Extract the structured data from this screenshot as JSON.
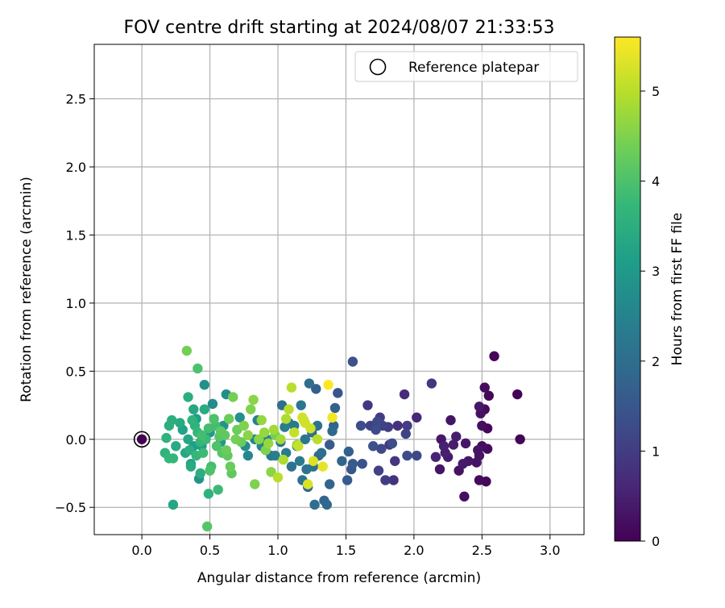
{
  "chart_data": {
    "type": "scatter",
    "title": "FOV centre drift starting at 2024/08/07 21:33:53",
    "xlabel": "Angular distance from reference (arcmin)",
    "ylabel": "Rotation from reference (arcmin)",
    "xlim": [
      -0.35,
      3.25
    ],
    "ylim": [
      -0.7,
      2.9
    ],
    "xticks": [
      0.0,
      0.5,
      1.0,
      1.5,
      2.0,
      2.5,
      3.0
    ],
    "xtick_labels": [
      "0.0",
      "0.5",
      "1.0",
      "1.5",
      "2.0",
      "2.5",
      "3.0"
    ],
    "yticks": [
      -0.5,
      0.0,
      0.5,
      1.0,
      1.5,
      2.0,
      2.5
    ],
    "ytick_labels": [
      "−0.5",
      "0.0",
      "0.5",
      "1.0",
      "1.5",
      "2.0",
      "2.5"
    ],
    "grid": true,
    "legend": {
      "placement": "top-right",
      "label": "Reference platepar",
      "marker": "open-circle"
    },
    "reference_point": {
      "x": 0.0,
      "y": 0.0
    },
    "colorbar": {
      "label": "Hours from first FF file",
      "colormap": "viridis",
      "range": [
        0,
        5.6
      ],
      "ticks": [
        0,
        1,
        2,
        3,
        4,
        5
      ],
      "tick_labels": [
        "0",
        "1",
        "2",
        "3",
        "4",
        "5"
      ]
    },
    "points": [
      {
        "x": 2.78,
        "y": 0.0,
        "h": 0.05
      },
      {
        "x": 2.76,
        "y": 0.33,
        "h": 0.05
      },
      {
        "x": 2.59,
        "y": 0.61,
        "h": 0.1
      },
      {
        "x": 2.55,
        "y": 0.32,
        "h": 0.1
      },
      {
        "x": 2.54,
        "y": 0.08,
        "h": 0.1
      },
      {
        "x": 2.54,
        "y": -0.07,
        "h": 0.15
      },
      {
        "x": 2.53,
        "y": -0.31,
        "h": 0.1
      },
      {
        "x": 2.52,
        "y": 0.38,
        "h": 0.15
      },
      {
        "x": 2.52,
        "y": 0.22,
        "h": 0.15
      },
      {
        "x": 2.5,
        "y": 0.1,
        "h": 0.2
      },
      {
        "x": 2.5,
        "y": -0.05,
        "h": 0.2
      },
      {
        "x": 2.49,
        "y": 0.19,
        "h": 0.25
      },
      {
        "x": 2.48,
        "y": -0.3,
        "h": 0.15
      },
      {
        "x": 2.48,
        "y": -0.12,
        "h": 0.3
      },
      {
        "x": 2.47,
        "y": -0.08,
        "h": 0.3
      },
      {
        "x": 2.46,
        "y": -0.17,
        "h": 0.3
      },
      {
        "x": 2.48,
        "y": 0.24,
        "h": 0.35
      },
      {
        "x": 2.4,
        "y": -0.16,
        "h": 0.35
      },
      {
        "x": 2.37,
        "y": -0.42,
        "h": 0.2
      },
      {
        "x": 2.38,
        "y": -0.03,
        "h": 0.35
      },
      {
        "x": 2.36,
        "y": -0.18,
        "h": 0.4
      },
      {
        "x": 2.33,
        "y": -0.23,
        "h": 0.25
      },
      {
        "x": 2.31,
        "y": 0.02,
        "h": 0.45
      },
      {
        "x": 2.29,
        "y": -0.04,
        "h": 0.45
      },
      {
        "x": 2.27,
        "y": 0.14,
        "h": 0.3
      },
      {
        "x": 2.25,
        "y": -0.13,
        "h": 0.4
      },
      {
        "x": 2.23,
        "y": -0.1,
        "h": 0.5
      },
      {
        "x": 2.22,
        "y": -0.05,
        "h": 0.5
      },
      {
        "x": 2.2,
        "y": 0.0,
        "h": 0.35
      },
      {
        "x": 2.19,
        "y": -0.22,
        "h": 0.3
      },
      {
        "x": 2.16,
        "y": -0.13,
        "h": 0.55
      },
      {
        "x": 2.13,
        "y": 0.41,
        "h": 0.9
      },
      {
        "x": 2.02,
        "y": 0.16,
        "h": 0.6
      },
      {
        "x": 2.02,
        "y": -0.12,
        "h": 1.2
      },
      {
        "x": 1.95,
        "y": 0.1,
        "h": 1.0
      },
      {
        "x": 1.95,
        "y": -0.12,
        "h": 1.3
      },
      {
        "x": 1.94,
        "y": 0.04,
        "h": 1.1
      },
      {
        "x": 1.93,
        "y": 0.33,
        "h": 0.7
      },
      {
        "x": 1.88,
        "y": 0.1,
        "h": 0.8
      },
      {
        "x": 1.86,
        "y": -0.16,
        "h": 0.9
      },
      {
        "x": 1.85,
        "y": -0.3,
        "h": 0.8
      },
      {
        "x": 1.84,
        "y": -0.03,
        "h": 1.3
      },
      {
        "x": 1.82,
        "y": -0.04,
        "h": 0.9
      },
      {
        "x": 1.81,
        "y": 0.09,
        "h": 1.0
      },
      {
        "x": 1.79,
        "y": -0.3,
        "h": 1.0
      },
      {
        "x": 1.77,
        "y": 0.1,
        "h": 1.1
      },
      {
        "x": 1.76,
        "y": -0.07,
        "h": 1.2
      },
      {
        "x": 1.75,
        "y": 0.16,
        "h": 1.0
      },
      {
        "x": 1.74,
        "y": -0.23,
        "h": 1.1
      },
      {
        "x": 1.73,
        "y": 0.13,
        "h": 1.2
      },
      {
        "x": 1.72,
        "y": 0.07,
        "h": 1.3
      },
      {
        "x": 1.7,
        "y": -0.05,
        "h": 1.4
      },
      {
        "x": 1.68,
        "y": 0.1,
        "h": 1.1
      },
      {
        "x": 1.66,
        "y": 0.25,
        "h": 0.9
      },
      {
        "x": 1.62,
        "y": -0.18,
        "h": 1.4
      },
      {
        "x": 1.61,
        "y": 0.1,
        "h": 1.3
      },
      {
        "x": 1.55,
        "y": 0.57,
        "h": 1.4
      },
      {
        "x": 1.55,
        "y": -0.18,
        "h": 1.6
      },
      {
        "x": 1.54,
        "y": -0.22,
        "h": 1.5
      },
      {
        "x": 1.52,
        "y": -0.09,
        "h": 1.7
      },
      {
        "x": 1.51,
        "y": -0.3,
        "h": 1.6
      },
      {
        "x": 1.47,
        "y": -0.16,
        "h": 1.8
      },
      {
        "x": 1.44,
        "y": 0.34,
        "h": 1.5
      },
      {
        "x": 1.42,
        "y": 0.23,
        "h": 1.7
      },
      {
        "x": 1.41,
        "y": 0.1,
        "h": 1.8
      },
      {
        "x": 1.4,
        "y": 0.06,
        "h": 1.9
      },
      {
        "x": 1.38,
        "y": -0.04,
        "h": 1.6
      },
      {
        "x": 1.38,
        "y": -0.33,
        "h": 1.8
      },
      {
        "x": 1.36,
        "y": -0.48,
        "h": 1.9
      },
      {
        "x": 1.34,
        "y": -0.45,
        "h": 1.8
      },
      {
        "x": 1.32,
        "y": -0.1,
        "h": 2.0
      },
      {
        "x": 1.3,
        "y": -0.12,
        "h": 1.9
      },
      {
        "x": 1.29,
        "y": 0.1,
        "h": 2.1
      },
      {
        "x": 1.28,
        "y": 0.37,
        "h": 1.7
      },
      {
        "x": 1.27,
        "y": -0.48,
        "h": 2.0
      },
      {
        "x": 1.26,
        "y": -0.2,
        "h": 2.0
      },
      {
        "x": 1.25,
        "y": 0.05,
        "h": 2.0
      },
      {
        "x": 1.23,
        "y": 0.41,
        "h": 2.0
      },
      {
        "x": 1.22,
        "y": -0.35,
        "h": 1.8
      },
      {
        "x": 1.21,
        "y": -0.22,
        "h": 2.1
      },
      {
        "x": 1.2,
        "y": 0.0,
        "h": 2.2
      },
      {
        "x": 1.18,
        "y": -0.3,
        "h": 2.1
      },
      {
        "x": 1.17,
        "y": 0.25,
        "h": 2.2
      },
      {
        "x": 1.16,
        "y": -0.16,
        "h": 2.3
      },
      {
        "x": 1.14,
        "y": -0.05,
        "h": 2.2
      },
      {
        "x": 1.12,
        "y": 0.1,
        "h": 2.3
      },
      {
        "x": 1.1,
        "y": -0.2,
        "h": 2.1
      },
      {
        "x": 1.08,
        "y": 0.12,
        "h": 2.0
      },
      {
        "x": 1.06,
        "y": -0.1,
        "h": 2.3
      },
      {
        "x": 1.05,
        "y": 0.09,
        "h": 2.4
      },
      {
        "x": 1.03,
        "y": 0.25,
        "h": 2.0
      },
      {
        "x": 1.02,
        "y": -0.02,
        "h": 2.2
      },
      {
        "x": 0.98,
        "y": -0.12,
        "h": 2.4
      },
      {
        "x": 0.95,
        "y": -0.12,
        "h": 2.2
      },
      {
        "x": 0.92,
        "y": 0.0,
        "h": 2.5
      },
      {
        "x": 0.88,
        "y": -0.05,
        "h": 2.6
      },
      {
        "x": 0.85,
        "y": 0.14,
        "h": 2.5
      },
      {
        "x": 0.83,
        "y": 0.0,
        "h": 2.6
      },
      {
        "x": 0.78,
        "y": -0.12,
        "h": 2.6
      },
      {
        "x": 0.76,
        "y": -0.05,
        "h": 2.7
      },
      {
        "x": 0.72,
        "y": 0.16,
        "h": 2.8
      },
      {
        "x": 0.62,
        "y": 0.33,
        "h": 2.7
      },
      {
        "x": 0.6,
        "y": 0.1,
        "h": 2.9
      },
      {
        "x": 0.58,
        "y": -0.02,
        "h": 3.0
      },
      {
        "x": 0.52,
        "y": 0.26,
        "h": 2.7
      },
      {
        "x": 0.5,
        "y": 0.05,
        "h": 3.0
      },
      {
        "x": 0.46,
        "y": 0.4,
        "h": 2.8
      },
      {
        "x": 0.44,
        "y": -0.05,
        "h": 3.1
      },
      {
        "x": 0.42,
        "y": -0.29,
        "h": 2.9
      },
      {
        "x": 0.4,
        "y": 0.15,
        "h": 3.1
      },
      {
        "x": 0.38,
        "y": -0.05,
        "h": 3.1
      },
      {
        "x": 0.36,
        "y": -0.18,
        "h": 3.2
      },
      {
        "x": 0.34,
        "y": 0.0,
        "h": 3.3
      },
      {
        "x": 0.32,
        "y": -0.1,
        "h": 3.3
      },
      {
        "x": 0.3,
        "y": 0.07,
        "h": 3.2
      },
      {
        "x": 0.28,
        "y": 0.12,
        "h": 3.4
      },
      {
        "x": 0.25,
        "y": -0.05,
        "h": 3.4
      },
      {
        "x": 0.23,
        "y": -0.48,
        "h": 3.3
      },
      {
        "x": 0.22,
        "y": 0.14,
        "h": 3.5
      },
      {
        "x": 0.2,
        "y": 0.1,
        "h": 3.5
      },
      {
        "x": 0.18,
        "y": 0.01,
        "h": 3.6
      },
      {
        "x": 0.17,
        "y": -0.1,
        "h": 3.6
      },
      {
        "x": 0.2,
        "y": -0.14,
        "h": 3.7
      },
      {
        "x": 0.23,
        "y": -0.14,
        "h": 3.7
      },
      {
        "x": 0.34,
        "y": 0.31,
        "h": 3.5
      },
      {
        "x": 0.37,
        "y": 0.14,
        "h": 3.6
      },
      {
        "x": 0.39,
        "y": 0.1,
        "h": 3.6
      },
      {
        "x": 0.41,
        "y": 0.05,
        "h": 3.7
      },
      {
        "x": 0.43,
        "y": -0.02,
        "h": 3.7
      },
      {
        "x": 0.45,
        "y": -0.1,
        "h": 3.8
      },
      {
        "x": 0.47,
        "y": 0.0,
        "h": 3.8
      },
      {
        "x": 0.49,
        "y": 0.08,
        "h": 3.9
      },
      {
        "x": 0.51,
        "y": -0.2,
        "h": 3.9
      },
      {
        "x": 0.53,
        "y": 0.15,
        "h": 4.0
      },
      {
        "x": 0.55,
        "y": -0.05,
        "h": 4.0
      },
      {
        "x": 0.57,
        "y": 0.02,
        "h": 4.1
      },
      {
        "x": 0.59,
        "y": -0.1,
        "h": 4.1
      },
      {
        "x": 0.61,
        "y": 0.03,
        "h": 4.2
      },
      {
        "x": 0.63,
        "y": -0.12,
        "h": 4.2
      },
      {
        "x": 0.65,
        "y": -0.2,
        "h": 4.3
      },
      {
        "x": 0.66,
        "y": -0.25,
        "h": 4.2
      },
      {
        "x": 0.64,
        "y": 0.15,
        "h": 4.3
      },
      {
        "x": 0.56,
        "y": -0.37,
        "h": 3.8
      },
      {
        "x": 0.49,
        "y": -0.4,
        "h": 3.6
      },
      {
        "x": 0.48,
        "y": -0.64,
        "h": 4.1
      },
      {
        "x": 0.43,
        "y": -0.25,
        "h": 3.5
      },
      {
        "x": 0.41,
        "y": 0.52,
        "h": 4.0
      },
      {
        "x": 0.33,
        "y": 0.65,
        "h": 4.4
      },
      {
        "x": 0.36,
        "y": -0.2,
        "h": 3.4
      },
      {
        "x": 0.4,
        "y": -0.12,
        "h": 3.7
      },
      {
        "x": 0.46,
        "y": 0.22,
        "h": 3.4
      },
      {
        "x": 0.5,
        "y": -0.23,
        "h": 4.0
      },
      {
        "x": 0.54,
        "y": 0.1,
        "h": 3.9
      },
      {
        "x": 0.58,
        "y": 0.06,
        "h": 4.2
      },
      {
        "x": 0.67,
        "y": 0.31,
        "h": 4.4
      },
      {
        "x": 0.69,
        "y": 0.0,
        "h": 4.4
      },
      {
        "x": 0.75,
        "y": 0.1,
        "h": 4.5
      },
      {
        "x": 0.78,
        "y": 0.03,
        "h": 4.6
      },
      {
        "x": 0.8,
        "y": 0.22,
        "h": 4.5
      },
      {
        "x": 0.82,
        "y": 0.29,
        "h": 4.6
      },
      {
        "x": 0.83,
        "y": -0.33,
        "h": 4.5
      },
      {
        "x": 0.86,
        "y": 0.0,
        "h": 4.6
      },
      {
        "x": 0.88,
        "y": 0.14,
        "h": 4.7
      },
      {
        "x": 0.9,
        "y": 0.05,
        "h": 4.7
      },
      {
        "x": 0.93,
        "y": -0.03,
        "h": 4.7
      },
      {
        "x": 0.95,
        "y": -0.24,
        "h": 4.6
      },
      {
        "x": 0.97,
        "y": 0.07,
        "h": 4.8
      },
      {
        "x": 1.0,
        "y": -0.28,
        "h": 5.0
      },
      {
        "x": 1.02,
        "y": 0.0,
        "h": 4.8
      },
      {
        "x": 1.04,
        "y": -0.15,
        "h": 4.9
      },
      {
        "x": 1.06,
        "y": 0.15,
        "h": 4.9
      },
      {
        "x": 1.08,
        "y": 0.22,
        "h": 5.0
      },
      {
        "x": 1.1,
        "y": 0.38,
        "h": 5.0
      },
      {
        "x": 1.12,
        "y": 0.05,
        "h": 5.1
      },
      {
        "x": 1.15,
        "y": -0.05,
        "h": 5.1
      },
      {
        "x": 1.18,
        "y": 0.16,
        "h": 5.2
      },
      {
        "x": 1.2,
        "y": 0.12,
        "h": 5.2
      },
      {
        "x": 1.22,
        "y": -0.33,
        "h": 5.3
      },
      {
        "x": 1.24,
        "y": 0.08,
        "h": 5.2
      },
      {
        "x": 1.26,
        "y": -0.16,
        "h": 5.3
      },
      {
        "x": 1.29,
        "y": 0.0,
        "h": 5.0
      },
      {
        "x": 1.33,
        "y": -0.2,
        "h": 5.4
      },
      {
        "x": 1.37,
        "y": 0.4,
        "h": 5.6
      },
      {
        "x": 1.4,
        "y": 0.16,
        "h": 5.5
      },
      {
        "x": 1.19,
        "y": 0.14,
        "h": 4.9
      },
      {
        "x": 1.14,
        "y": -0.04,
        "h": 4.8
      },
      {
        "x": 0.98,
        "y": 0.03,
        "h": 4.4
      },
      {
        "x": 0.91,
        "y": -0.08,
        "h": 4.5
      },
      {
        "x": 0.73,
        "y": -0.02,
        "h": 4.3
      },
      {
        "x": 0.7,
        "y": 0.07,
        "h": 4.3
      },
      {
        "x": 0.62,
        "y": -0.08,
        "h": 4.3
      },
      {
        "x": 0.44,
        "y": 0.03,
        "h": 3.9
      },
      {
        "x": 0.38,
        "y": 0.22,
        "h": 3.3
      },
      {
        "x": 0.35,
        "y": -0.08,
        "h": 3.5
      }
    ]
  }
}
